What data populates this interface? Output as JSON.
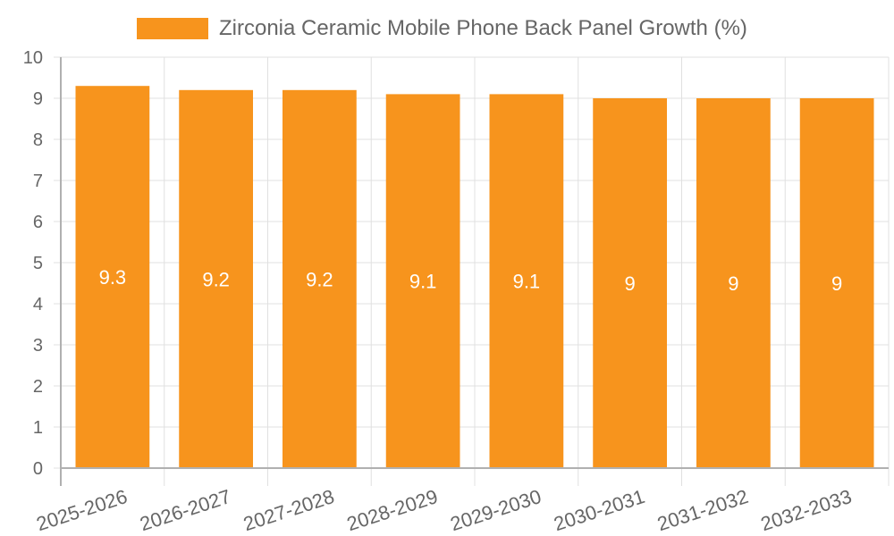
{
  "chart_data": {
    "type": "bar",
    "title": "",
    "legend": [
      {
        "label": "Zirconia Ceramic Mobile Phone Back Panel Growth (%)",
        "color": "#f7941d"
      }
    ],
    "legend_position": "top",
    "categories": [
      "2025-2026",
      "2026-2027",
      "2027-2028",
      "2028-2029",
      "2029-2030",
      "2030-2031",
      "2031-2032",
      "2032-2033"
    ],
    "series": [
      {
        "name": "Zirconia Ceramic Mobile Phone Back Panel Growth (%)",
        "values": [
          9.3,
          9.2,
          9.2,
          9.1,
          9.1,
          9,
          9,
          9
        ],
        "color": "#f7941d"
      }
    ],
    "data_labels": [
      "9.3",
      "9.2",
      "9.2",
      "9.1",
      "9.1",
      "9",
      "9",
      "9"
    ],
    "xlabel": "",
    "ylabel": "",
    "ylim": [
      0,
      10
    ],
    "yticks": [
      0,
      1,
      2,
      3,
      4,
      5,
      6,
      7,
      8,
      9,
      10
    ],
    "grid": true
  },
  "legend": {
    "label": "Zirconia Ceramic Mobile Phone Back Panel Growth (%)"
  },
  "colors": {
    "bar": "#f7941d",
    "grid": "#e0e0e0",
    "axis": "#b0b0b0",
    "text": "#666666",
    "label": "#ffffff"
  }
}
